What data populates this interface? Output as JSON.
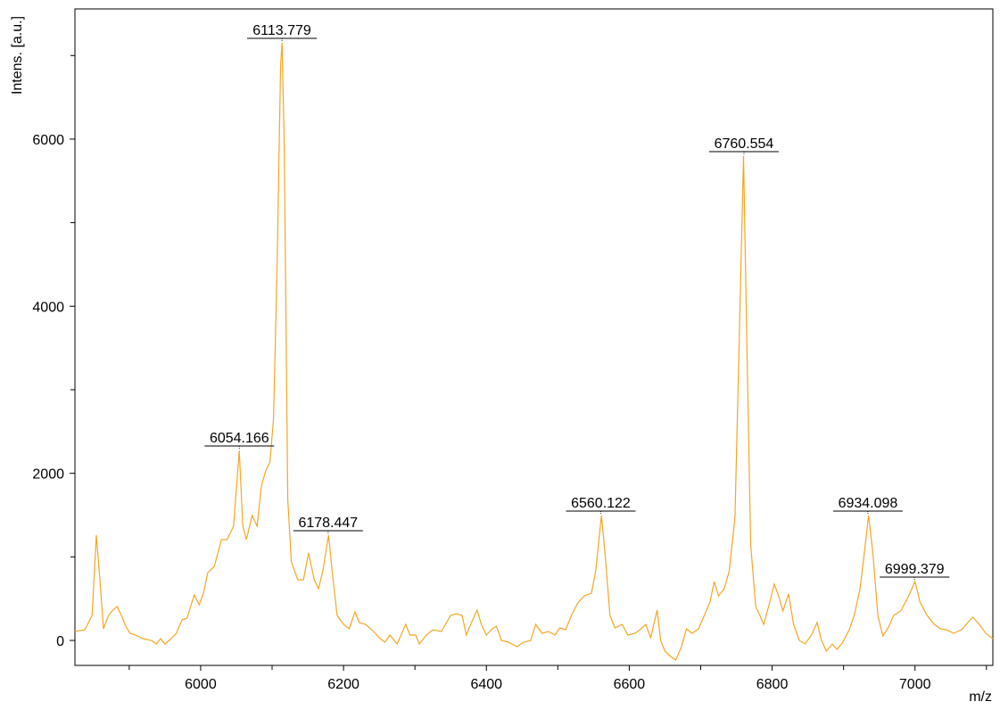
{
  "chart_data": {
    "type": "line",
    "y_label": "Intens. [a.u.]",
    "x_label": "m/z",
    "xlim": [
      5824,
      7109
    ],
    "ylim": [
      -299,
      7558
    ],
    "xticks": [
      6000,
      6200,
      6400,
      6600,
      6800,
      7000
    ],
    "xminorticks": [
      5900,
      6100,
      6300,
      6500,
      6700,
      6900,
      7100
    ],
    "yticks": [
      0,
      2000,
      4000,
      6000
    ],
    "yminorticks": [
      1000,
      3000,
      5000,
      7000
    ],
    "color": "#f5a623",
    "x": [
      5824,
      5838,
      5848,
      5854,
      5859,
      5864,
      5871,
      5876,
      5883,
      5889,
      5895,
      5901,
      5909,
      5919,
      5931,
      5938,
      5944,
      5950,
      5956,
      5966,
      5974,
      5981,
      5991,
      5998,
      6004,
      6010,
      6019,
      6029,
      6037,
      6046,
      6054,
      6059,
      6064,
      6072,
      6079,
      6085,
      6091,
      6097,
      6102,
      6107,
      6112,
      6114,
      6117,
      6122,
      6127,
      6136,
      6144,
      6151,
      6159,
      6165,
      6171,
      6179,
      6184,
      6191,
      6200,
      6208,
      6216,
      6222,
      6231,
      6241,
      6250,
      6258,
      6265,
      6275,
      6287,
      6293,
      6301,
      6306,
      6316,
      6325,
      6337,
      6350,
      6358,
      6366,
      6372,
      6378,
      6387,
      6393,
      6400,
      6408,
      6414,
      6421,
      6431,
      6443,
      6452,
      6462,
      6469,
      6478,
      6487,
      6496,
      6503,
      6511,
      6519,
      6528,
      6537,
      6547,
      6553,
      6561,
      6566,
      6573,
      6580,
      6590,
      6598,
      6608,
      6615,
      6623,
      6630,
      6639,
      6644,
      6650,
      6658,
      6665,
      6673,
      6680,
      6688,
      6697,
      6705,
      6713,
      6719,
      6725,
      6733,
      6740,
      6748,
      6754,
      6760,
      6765,
      6770,
      6777,
      6783,
      6788,
      6795,
      6803,
      6809,
      6815,
      6823,
      6830,
      6838,
      6846,
      6855,
      6863,
      6869,
      6876,
      6884,
      6891,
      6899,
      6908,
      6915,
      6923,
      6929,
      6935,
      6941,
      6948,
      6955,
      6963,
      6970,
      6980,
      6990,
      7000,
      7007,
      7017,
      7027,
      7036,
      7044,
      7054,
      7065,
      7074,
      7081,
      7090,
      7099,
      7109
    ],
    "values": [
      107,
      128,
      299,
      1260,
      726,
      139,
      299,
      352,
      406,
      299,
      171,
      85,
      64,
      21,
      0,
      -43,
      21,
      -43,
      0,
      85,
      246,
      267,
      544,
      427,
      566,
      811,
      886,
      1206,
      1206,
      1367,
      2274,
      1367,
      1206,
      1495,
      1367,
      1847,
      2028,
      2135,
      2648,
      4463,
      6900,
      7153,
      5957,
      1687,
      940,
      726,
      726,
      1046,
      726,
      619,
      833,
      1260,
      833,
      299,
      192,
      139,
      342,
      214,
      192,
      117,
      32,
      -21,
      64,
      -43,
      192,
      64,
      64,
      -43,
      64,
      128,
      107,
      299,
      320,
      299,
      64,
      192,
      363,
      192,
      64,
      139,
      171,
      0,
      -21,
      -75,
      -21,
      0,
      192,
      85,
      107,
      64,
      149,
      128,
      299,
      448,
      534,
      566,
      833,
      1495,
      1046,
      299,
      149,
      192,
      64,
      85,
      128,
      192,
      32,
      363,
      0,
      -128,
      -192,
      -235,
      -75,
      139,
      85,
      139,
      299,
      459,
      705,
      534,
      619,
      833,
      1473,
      3608,
      5797,
      3395,
      1153,
      406,
      299,
      192,
      406,
      673,
      534,
      352,
      555,
      192,
      0,
      -43,
      64,
      214,
      0,
      -128,
      -43,
      -107,
      -21,
      128,
      299,
      619,
      1046,
      1495,
      1046,
      299,
      53,
      160,
      299,
      352,
      512,
      705,
      459,
      299,
      192,
      139,
      128,
      85,
      128,
      214,
      278,
      192,
      85,
      21
    ],
    "peaks": [
      {
        "label": 6054.166,
        "y": 2274
      },
      {
        "label": 6113.779,
        "y": 7153
      },
      {
        "label": 6178.447,
        "y": 1260
      },
      {
        "label": 6560.122,
        "y": 1495
      },
      {
        "label": 6760.554,
        "y": 5797
      },
      {
        "label": 6934.098,
        "y": 1495
      },
      {
        "label": 6999.379,
        "y": 705
      }
    ]
  }
}
